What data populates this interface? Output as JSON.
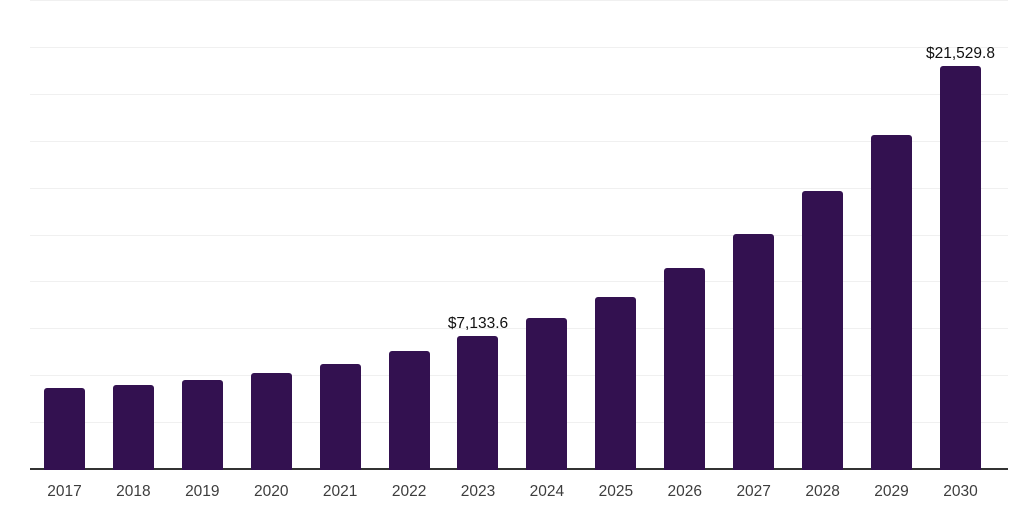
{
  "chart": {
    "background": "#ffffff",
    "bar_color": "#331150",
    "gridline_color": "#f0f0f0",
    "axis_line_color": "#333333",
    "tick_label_color": "#3d3d3d",
    "data_label_color": "#111111"
  },
  "chart_data": {
    "type": "bar",
    "title": "",
    "xlabel": "",
    "ylabel": "",
    "categories": [
      "2017",
      "2018",
      "2019",
      "2020",
      "2021",
      "2022",
      "2023",
      "2024",
      "2025",
      "2026",
      "2027",
      "2028",
      "2029",
      "2030"
    ],
    "values": [
      4370,
      4530,
      4800,
      5170,
      5640,
      6340,
      7133.6,
      8100,
      9220,
      10770,
      12560,
      14870,
      17860,
      21529.8
    ],
    "data_labels": [
      null,
      null,
      null,
      null,
      null,
      null,
      "$7,133.6",
      null,
      null,
      null,
      null,
      null,
      null,
      "$21,529.8"
    ],
    "ylim": [
      0,
      25000
    ],
    "grid_step": 2500,
    "grid": true,
    "y_tick_labels_visible": false,
    "legend": false,
    "currency_prefix": "$"
  }
}
